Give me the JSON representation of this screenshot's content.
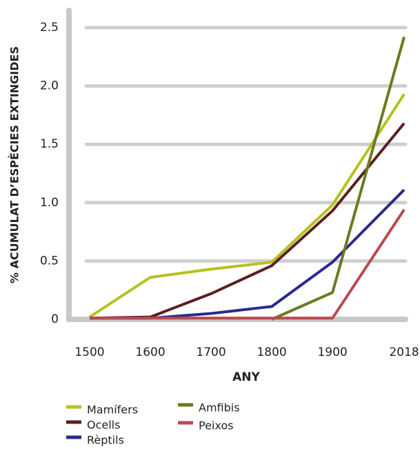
{
  "chart_data": {
    "type": "line",
    "x_label": "ANY",
    "y_label": "% ACUMULAT D’ESPÈCIES EXTINGIDES",
    "x": [
      1500,
      1600,
      1700,
      1800,
      1900,
      2018
    ],
    "xlim": [
      1475,
      2018
    ],
    "xticks": [
      1500,
      1600,
      1700,
      1800,
      1900,
      2018
    ],
    "ylim": [
      0,
      2.5
    ],
    "yticks": [
      0,
      0.5,
      {
        "value": 1,
        "label": "1.0"
      },
      1.5,
      {
        "value": 2,
        "label": "2.0"
      },
      2.5
    ],
    "grid": true,
    "series": [
      {
        "name": "Mamífers",
        "color": "#b5c21b",
        "values": [
          0.02,
          0.36,
          0.43,
          0.49,
          0.98,
          1.93
        ]
      },
      {
        "name": "Ocells",
        "color": "#5c1f1f",
        "values": [
          0.01,
          0.02,
          0.22,
          0.46,
          0.93,
          1.68
        ]
      },
      {
        "name": "Rèptils",
        "color": "#2a2a8a",
        "values": [
          0.01,
          0.01,
          0.05,
          0.11,
          0.49,
          1.11
        ]
      },
      {
        "name": "Amfibis",
        "color": "#6b7a1e",
        "values": [
          null,
          null,
          null,
          0,
          0.23,
          2.42
        ]
      },
      {
        "name": "Peixos",
        "color": "#b84a4f",
        "values": [
          0.01,
          0.01,
          0.01,
          0.01,
          0.01,
          0.94
        ]
      }
    ]
  }
}
